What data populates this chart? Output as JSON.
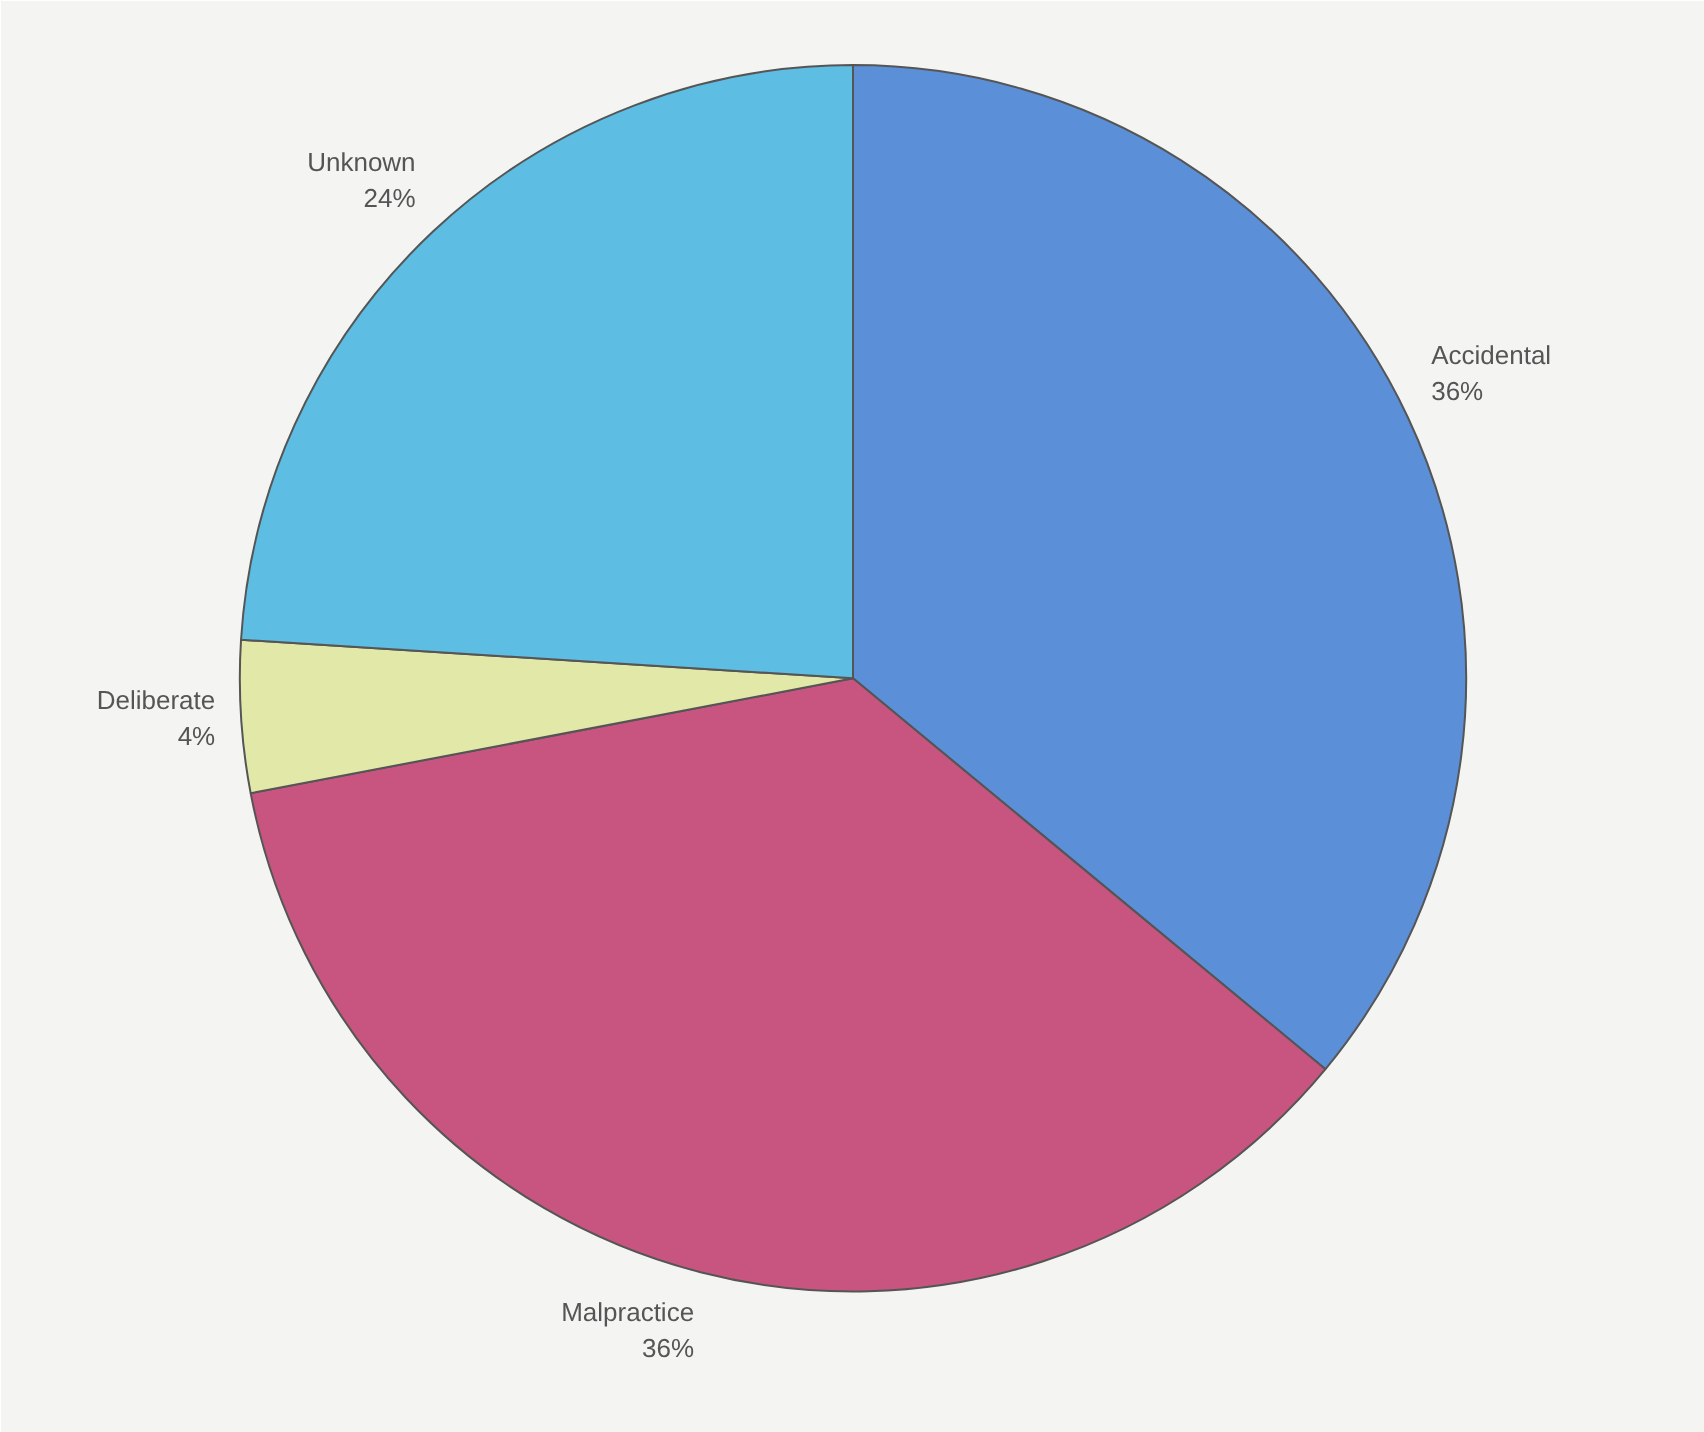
{
  "chart_data": {
    "type": "pie",
    "categories": [
      "Accidental",
      "Malpractice",
      "Deliberate",
      "Unknown"
    ],
    "values": [
      36,
      36,
      4,
      24
    ],
    "value_labels": [
      "36%",
      "36%",
      "4%",
      "24%"
    ],
    "colors": [
      "#5b8fd8",
      "#c8557f",
      "#e2e8a8",
      "#5dbde2"
    ]
  }
}
